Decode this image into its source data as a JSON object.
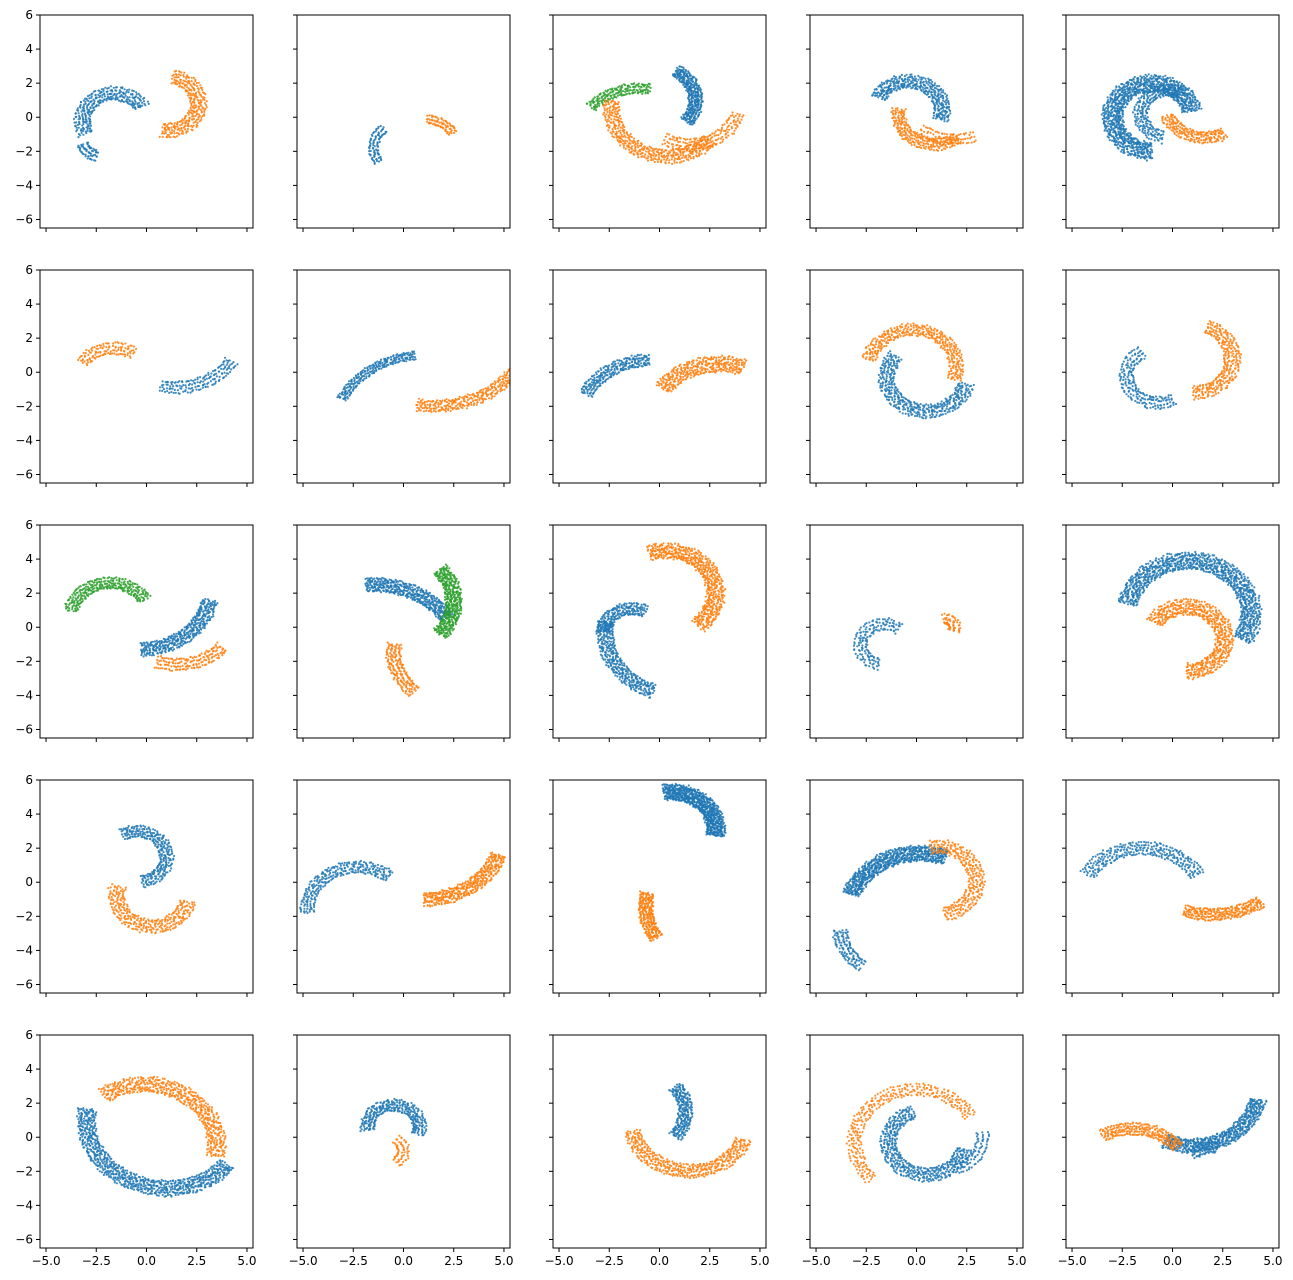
{
  "chart_data": {
    "type": "scatter",
    "layout": {
      "rows": 5,
      "cols": 5,
      "sharex": true,
      "sharey": true
    },
    "xlim": [
      -5.3,
      5.3
    ],
    "ylim": [
      -6.5,
      6.0
    ],
    "xticks": [
      -5.0,
      -2.5,
      0.0,
      2.5,
      5.0
    ],
    "xtick_labels": [
      "−5.0",
      "−2.5",
      "0.0",
      "2.5",
      "5.0"
    ],
    "yticks": [
      -6,
      -4,
      -2,
      0,
      2,
      4,
      6
    ],
    "ytick_labels": [
      "−6",
      "−4",
      "−2",
      "0",
      "2",
      "4",
      "6"
    ],
    "series_colors": {
      "blue": "#1f77b4",
      "orange": "#ff7f0e",
      "green": "#2ca02c"
    },
    "panels": [
      {
        "row": 0,
        "col": 0,
        "arms": [
          {
            "color": "blue",
            "cx": -1.6,
            "cy": -0.2,
            "r": 1.6,
            "a0": 30,
            "a1": 210,
            "w": 0.35,
            "n": 60,
            "strands": 5
          },
          {
            "color": "blue",
            "cx": -2.0,
            "cy": -1.1,
            "r": 1.3,
            "a0": 200,
            "a1": 250,
            "w": 0.25,
            "n": 20,
            "strands": 3
          },
          {
            "color": "orange",
            "cx": 1.0,
            "cy": 0.8,
            "r": 1.6,
            "a0": 80,
            "a1": -100,
            "w": 0.35,
            "n": 60,
            "strands": 5
          }
        ]
      },
      {
        "row": 0,
        "col": 1,
        "arms": [
          {
            "color": "blue",
            "cx": 0.0,
            "cy": -1.8,
            "r": 1.5,
            "a0": 130,
            "a1": 215,
            "w": 0.2,
            "n": 30,
            "strands": 3
          },
          {
            "color": "orange",
            "cx": 1.0,
            "cy": -1.8,
            "r": 1.7,
            "a0": 30,
            "a1": 85,
            "w": 0.2,
            "n": 25,
            "strands": 3
          }
        ]
      },
      {
        "row": 0,
        "col": 2,
        "arms": [
          {
            "color": "blue",
            "cx": -0.2,
            "cy": 1.0,
            "r": 2.0,
            "a0": 60,
            "a1": -40,
            "w": 0.3,
            "n": 60,
            "strands": 6
          },
          {
            "color": "green",
            "cx": -1.0,
            "cy": -1.5,
            "r": 3.2,
            "a0": 80,
            "a1": 140,
            "w": 0.25,
            "n": 45,
            "strands": 4
          },
          {
            "color": "orange",
            "cx": 0.4,
            "cy": 0.5,
            "r": 2.8,
            "a0": 170,
            "a1": 320,
            "w": 0.35,
            "n": 70,
            "strands": 6
          },
          {
            "color": "orange",
            "cx": 1.5,
            "cy": 0.9,
            "r": 2.5,
            "a0": 240,
            "a1": 345,
            "w": 0.3,
            "n": 40,
            "strands": 4
          }
        ]
      },
      {
        "row": 0,
        "col": 3,
        "arms": [
          {
            "color": "blue",
            "cx": -0.4,
            "cy": 0.4,
            "r": 1.7,
            "a0": -20,
            "a1": 155,
            "w": 0.35,
            "n": 60,
            "strands": 6
          },
          {
            "color": "orange",
            "cx": 0.9,
            "cy": 0.2,
            "r": 1.8,
            "a0": 170,
            "a1": 310,
            "w": 0.3,
            "n": 50,
            "strands": 5
          },
          {
            "color": "orange",
            "cx": 2.0,
            "cy": 1.5,
            "r": 2.8,
            "a0": 230,
            "a1": 290,
            "w": 0.25,
            "n": 25,
            "strands": 3
          }
        ]
      },
      {
        "row": 0,
        "col": 4,
        "arms": [
          {
            "color": "blue",
            "cx": -1.0,
            "cy": 0.0,
            "r": 2.0,
            "a0": 10,
            "a1": 270,
            "w": 0.45,
            "n": 110,
            "strands": 9
          },
          {
            "color": "blue",
            "cx": -0.2,
            "cy": 0.2,
            "r": 1.4,
            "a0": 60,
            "a1": 260,
            "w": 0.3,
            "n": 50,
            "strands": 5
          },
          {
            "color": "orange",
            "cx": 1.6,
            "cy": 0.8,
            "r": 2.0,
            "a0": 200,
            "a1": 300,
            "w": 0.3,
            "n": 40,
            "strands": 5
          }
        ]
      },
      {
        "row": 1,
        "col": 0,
        "arms": [
          {
            "color": "orange",
            "cx": -1.6,
            "cy": -0.6,
            "r": 2.0,
            "a0": 60,
            "a1": 145,
            "w": 0.3,
            "n": 30,
            "strands": 4
          },
          {
            "color": "blue",
            "cx": 1.5,
            "cy": 2.3,
            "r": 3.2,
            "a0": -30,
            "a1": -105,
            "w": 0.3,
            "n": 40,
            "strands": 4
          }
        ]
      },
      {
        "row": 1,
        "col": 1,
        "arms": [
          {
            "color": "blue",
            "cx": 1.0,
            "cy": -3.5,
            "r": 4.5,
            "a0": 95,
            "a1": 155,
            "w": 0.2,
            "n": 60,
            "strands": 4
          },
          {
            "color": "orange",
            "cx": 1.5,
            "cy": 3.0,
            "r": 5.0,
            "a0": -20,
            "a1": -100,
            "w": 0.3,
            "n": 60,
            "strands": 6
          }
        ]
      },
      {
        "row": 1,
        "col": 2,
        "arms": [
          {
            "color": "blue",
            "cx": -0.5,
            "cy": -2.8,
            "r": 3.5,
            "a0": 90,
            "a1": 155,
            "w": 0.3,
            "n": 50,
            "strands": 5
          },
          {
            "color": "orange",
            "cx": 3.0,
            "cy": -3.0,
            "r": 3.5,
            "a0": 70,
            "a1": 145,
            "w": 0.4,
            "n": 55,
            "strands": 6
          }
        ]
      },
      {
        "row": 1,
        "col": 3,
        "arms": [
          {
            "color": "orange",
            "cx": -0.2,
            "cy": 0.3,
            "r": 2.2,
            "a0": -20,
            "a1": 170,
            "w": 0.3,
            "n": 60,
            "strands": 6
          },
          {
            "color": "blue",
            "cx": 0.5,
            "cy": -0.3,
            "r": 2.0,
            "a0": 140,
            "a1": 350,
            "w": 0.35,
            "n": 70,
            "strands": 6
          }
        ]
      },
      {
        "row": 1,
        "col": 4,
        "arms": [
          {
            "color": "orange",
            "cx": 1.0,
            "cy": 0.8,
            "r": 2.0,
            "a0": 70,
            "a1": -90,
            "w": 0.35,
            "n": 60,
            "strands": 5
          },
          {
            "color": "blue",
            "cx": -0.7,
            "cy": -0.2,
            "r": 1.6,
            "a0": 120,
            "a1": 300,
            "w": 0.3,
            "n": 50,
            "strands": 4
          }
        ]
      },
      {
        "row": 2,
        "col": 0,
        "arms": [
          {
            "color": "green",
            "cx": -1.8,
            "cy": 0.6,
            "r": 2.0,
            "a0": 30,
            "a1": 170,
            "w": 0.3,
            "n": 60,
            "strands": 5
          },
          {
            "color": "blue",
            "cx": -0.3,
            "cy": 2.2,
            "r": 3.5,
            "a0": -10,
            "a1": -90,
            "w": 0.35,
            "n": 65,
            "strands": 6
          },
          {
            "color": "orange",
            "cx": 1.5,
            "cy": 0.8,
            "r": 3.0,
            "a0": -40,
            "a1": -110,
            "w": 0.3,
            "n": 40,
            "strands": 4
          }
        ]
      },
      {
        "row": 2,
        "col": 1,
        "arms": [
          {
            "color": "blue",
            "cx": -1.5,
            "cy": -2.0,
            "r": 4.5,
            "a0": 35,
            "a1": 95,
            "w": 0.35,
            "n": 70,
            "strands": 6
          },
          {
            "color": "green",
            "cx": -0.5,
            "cy": 1.5,
            "r": 3.0,
            "a0": -40,
            "a1": 40,
            "w": 0.35,
            "n": 70,
            "strands": 6
          },
          {
            "color": "orange",
            "cx": 2.5,
            "cy": -1.5,
            "r": 3.0,
            "a0": 170,
            "a1": 230,
            "w": 0.3,
            "n": 45,
            "strands": 4
          }
        ]
      },
      {
        "row": 2,
        "col": 2,
        "arms": [
          {
            "color": "orange",
            "cx": 0.3,
            "cy": 2.0,
            "r": 2.5,
            "a0": -50,
            "a1": 110,
            "w": 0.4,
            "n": 80,
            "strands": 7
          },
          {
            "color": "blue",
            "cx": -1.4,
            "cy": -0.3,
            "r": 1.4,
            "a0": 60,
            "a1": 180,
            "w": 0.3,
            "n": 40,
            "strands": 5
          },
          {
            "color": "blue",
            "cx": 1.0,
            "cy": -0.3,
            "r": 3.7,
            "a0": 170,
            "a1": 250,
            "w": 0.35,
            "n": 60,
            "strands": 6
          }
        ]
      },
      {
        "row": 2,
        "col": 3,
        "arms": [
          {
            "color": "blue",
            "cx": -1.6,
            "cy": -1.0,
            "r": 1.2,
            "a0": 50,
            "a1": 260,
            "w": 0.3,
            "n": 40,
            "strands": 4
          },
          {
            "color": "orange",
            "cx": 1.4,
            "cy": 0.0,
            "r": 0.5,
            "a0": -30,
            "a1": 100,
            "w": 0.25,
            "n": 20,
            "strands": 3
          }
        ]
      },
      {
        "row": 2,
        "col": 4,
        "arms": [
          {
            "color": "blue",
            "cx": 0.8,
            "cy": 0.8,
            "r": 3.1,
            "a0": -30,
            "a1": 170,
            "w": 0.45,
            "n": 110,
            "strands": 9
          },
          {
            "color": "orange",
            "cx": 0.7,
            "cy": -0.7,
            "r": 1.9,
            "a0": -90,
            "a1": 150,
            "w": 0.4,
            "n": 80,
            "strands": 7
          }
        ]
      },
      {
        "row": 3,
        "col": 0,
        "arms": [
          {
            "color": "blue",
            "cx": -0.5,
            "cy": 1.5,
            "r": 1.5,
            "a0": -80,
            "a1": 120,
            "w": 0.3,
            "n": 60,
            "strands": 5
          },
          {
            "color": "orange",
            "cx": 0.3,
            "cy": -0.8,
            "r": 1.8,
            "a0": -10,
            "a1": -200,
            "w": 0.35,
            "n": 60,
            "strands": 5
          }
        ]
      },
      {
        "row": 3,
        "col": 1,
        "arms": [
          {
            "color": "blue",
            "cx": -2.3,
            "cy": -1.6,
            "r": 2.5,
            "a0": 50,
            "a1": 185,
            "w": 0.3,
            "n": 55,
            "strands": 5
          },
          {
            "color": "orange",
            "cx": 1.0,
            "cy": 3.0,
            "r": 4.0,
            "a0": -20,
            "a1": -90,
            "w": 0.35,
            "n": 65,
            "strands": 6
          }
        ]
      },
      {
        "row": 3,
        "col": 2,
        "arms": [
          {
            "color": "blue",
            "cx": 0.6,
            "cy": 3.1,
            "r": 2.2,
            "a0": 100,
            "a1": -10,
            "w": 0.4,
            "n": 90,
            "strands": 8
          },
          {
            "color": "orange",
            "cx": 3.3,
            "cy": -1.3,
            "r": 4.0,
            "a0": 170,
            "a1": 210,
            "w": 0.3,
            "n": 50,
            "strands": 5
          }
        ]
      },
      {
        "row": 3,
        "col": 3,
        "arms": [
          {
            "color": "blue",
            "cx": 0.2,
            "cy": -2.0,
            "r": 3.7,
            "a0": 70,
            "a1": 160,
            "w": 0.4,
            "n": 85,
            "strands": 8
          },
          {
            "color": "blue",
            "cx": -1.2,
            "cy": -2.8,
            "r": 2.6,
            "a0": 180,
            "a1": 235,
            "w": 0.3,
            "n": 30,
            "strands": 4
          },
          {
            "color": "orange",
            "cx": 1.0,
            "cy": 0.1,
            "r": 2.0,
            "a0": 100,
            "a1": -80,
            "w": 0.35,
            "n": 60,
            "strands": 5
          }
        ]
      },
      {
        "row": 3,
        "col": 4,
        "arms": [
          {
            "color": "blue",
            "cx": -1.5,
            "cy": -1.2,
            "r": 3.2,
            "a0": 30,
            "a1": 150,
            "w": 0.35,
            "n": 60,
            "strands": 5
          },
          {
            "color": "orange",
            "cx": 2.0,
            "cy": 2.3,
            "r": 4.2,
            "a0": -55,
            "a1": -110,
            "w": 0.3,
            "n": 55,
            "strands": 5
          }
        ]
      },
      {
        "row": 4,
        "col": 0,
        "arms": [
          {
            "color": "orange",
            "cx": -0.1,
            "cy": -0.5,
            "r": 3.6,
            "a0": -10,
            "a1": 125,
            "w": 0.4,
            "n": 75,
            "strands": 7
          },
          {
            "color": "blue",
            "cx": 1.0,
            "cy": 1.0,
            "r": 4.0,
            "a0": 170,
            "a1": 320,
            "w": 0.4,
            "n": 100,
            "strands": 8
          }
        ]
      },
      {
        "row": 4,
        "col": 1,
        "arms": [
          {
            "color": "blue",
            "cx": -0.5,
            "cy": 0.6,
            "r": 1.3,
            "a0": -20,
            "a1": 190,
            "w": 0.3,
            "n": 60,
            "strands": 5
          },
          {
            "color": "orange",
            "cx": -0.8,
            "cy": -0.8,
            "r": 0.8,
            "a0": -60,
            "a1": 60,
            "w": 0.25,
            "n": 20,
            "strands": 3
          }
        ]
      },
      {
        "row": 4,
        "col": 2,
        "arms": [
          {
            "color": "blue",
            "cx": -1.0,
            "cy": 1.5,
            "r": 2.3,
            "a0": 40,
            "a1": -40,
            "w": 0.3,
            "n": 50,
            "strands": 5
          },
          {
            "color": "orange",
            "cx": 1.5,
            "cy": 0.9,
            "r": 2.9,
            "a0": 190,
            "a1": 340,
            "w": 0.35,
            "n": 70,
            "strands": 6
          }
        ]
      },
      {
        "row": 4,
        "col": 3,
        "arms": [
          {
            "color": "orange",
            "cx": 0.0,
            "cy": -0.3,
            "r": 3.1,
            "a0": 30,
            "a1": 225,
            "w": 0.3,
            "n": 65,
            "strands": 5
          },
          {
            "color": "blue",
            "cx": 0.5,
            "cy": -0.3,
            "r": 1.9,
            "a0": 110,
            "a1": 350,
            "w": 0.35,
            "n": 80,
            "strands": 6
          },
          {
            "color": "blue",
            "cx": 1.3,
            "cy": 0.0,
            "r": 2.0,
            "a0": -70,
            "a1": 10,
            "w": 0.25,
            "n": 25,
            "strands": 3
          }
        ]
      },
      {
        "row": 4,
        "col": 4,
        "arms": [
          {
            "color": "blue",
            "cx": 1.0,
            "cy": 2.8,
            "r": 3.3,
            "a0": -10,
            "a1": -115,
            "w": 0.35,
            "n": 80,
            "strands": 7
          },
          {
            "color": "blue",
            "cx": 2.0,
            "cy": -2.0,
            "r": 1.4,
            "a0": 80,
            "a1": 140,
            "w": 0.25,
            "n": 20,
            "strands": 3
          },
          {
            "color": "orange",
            "cx": -2.0,
            "cy": -2.5,
            "r": 3.0,
            "a0": 40,
            "a1": 120,
            "w": 0.3,
            "n": 50,
            "strands": 5
          }
        ]
      }
    ]
  }
}
